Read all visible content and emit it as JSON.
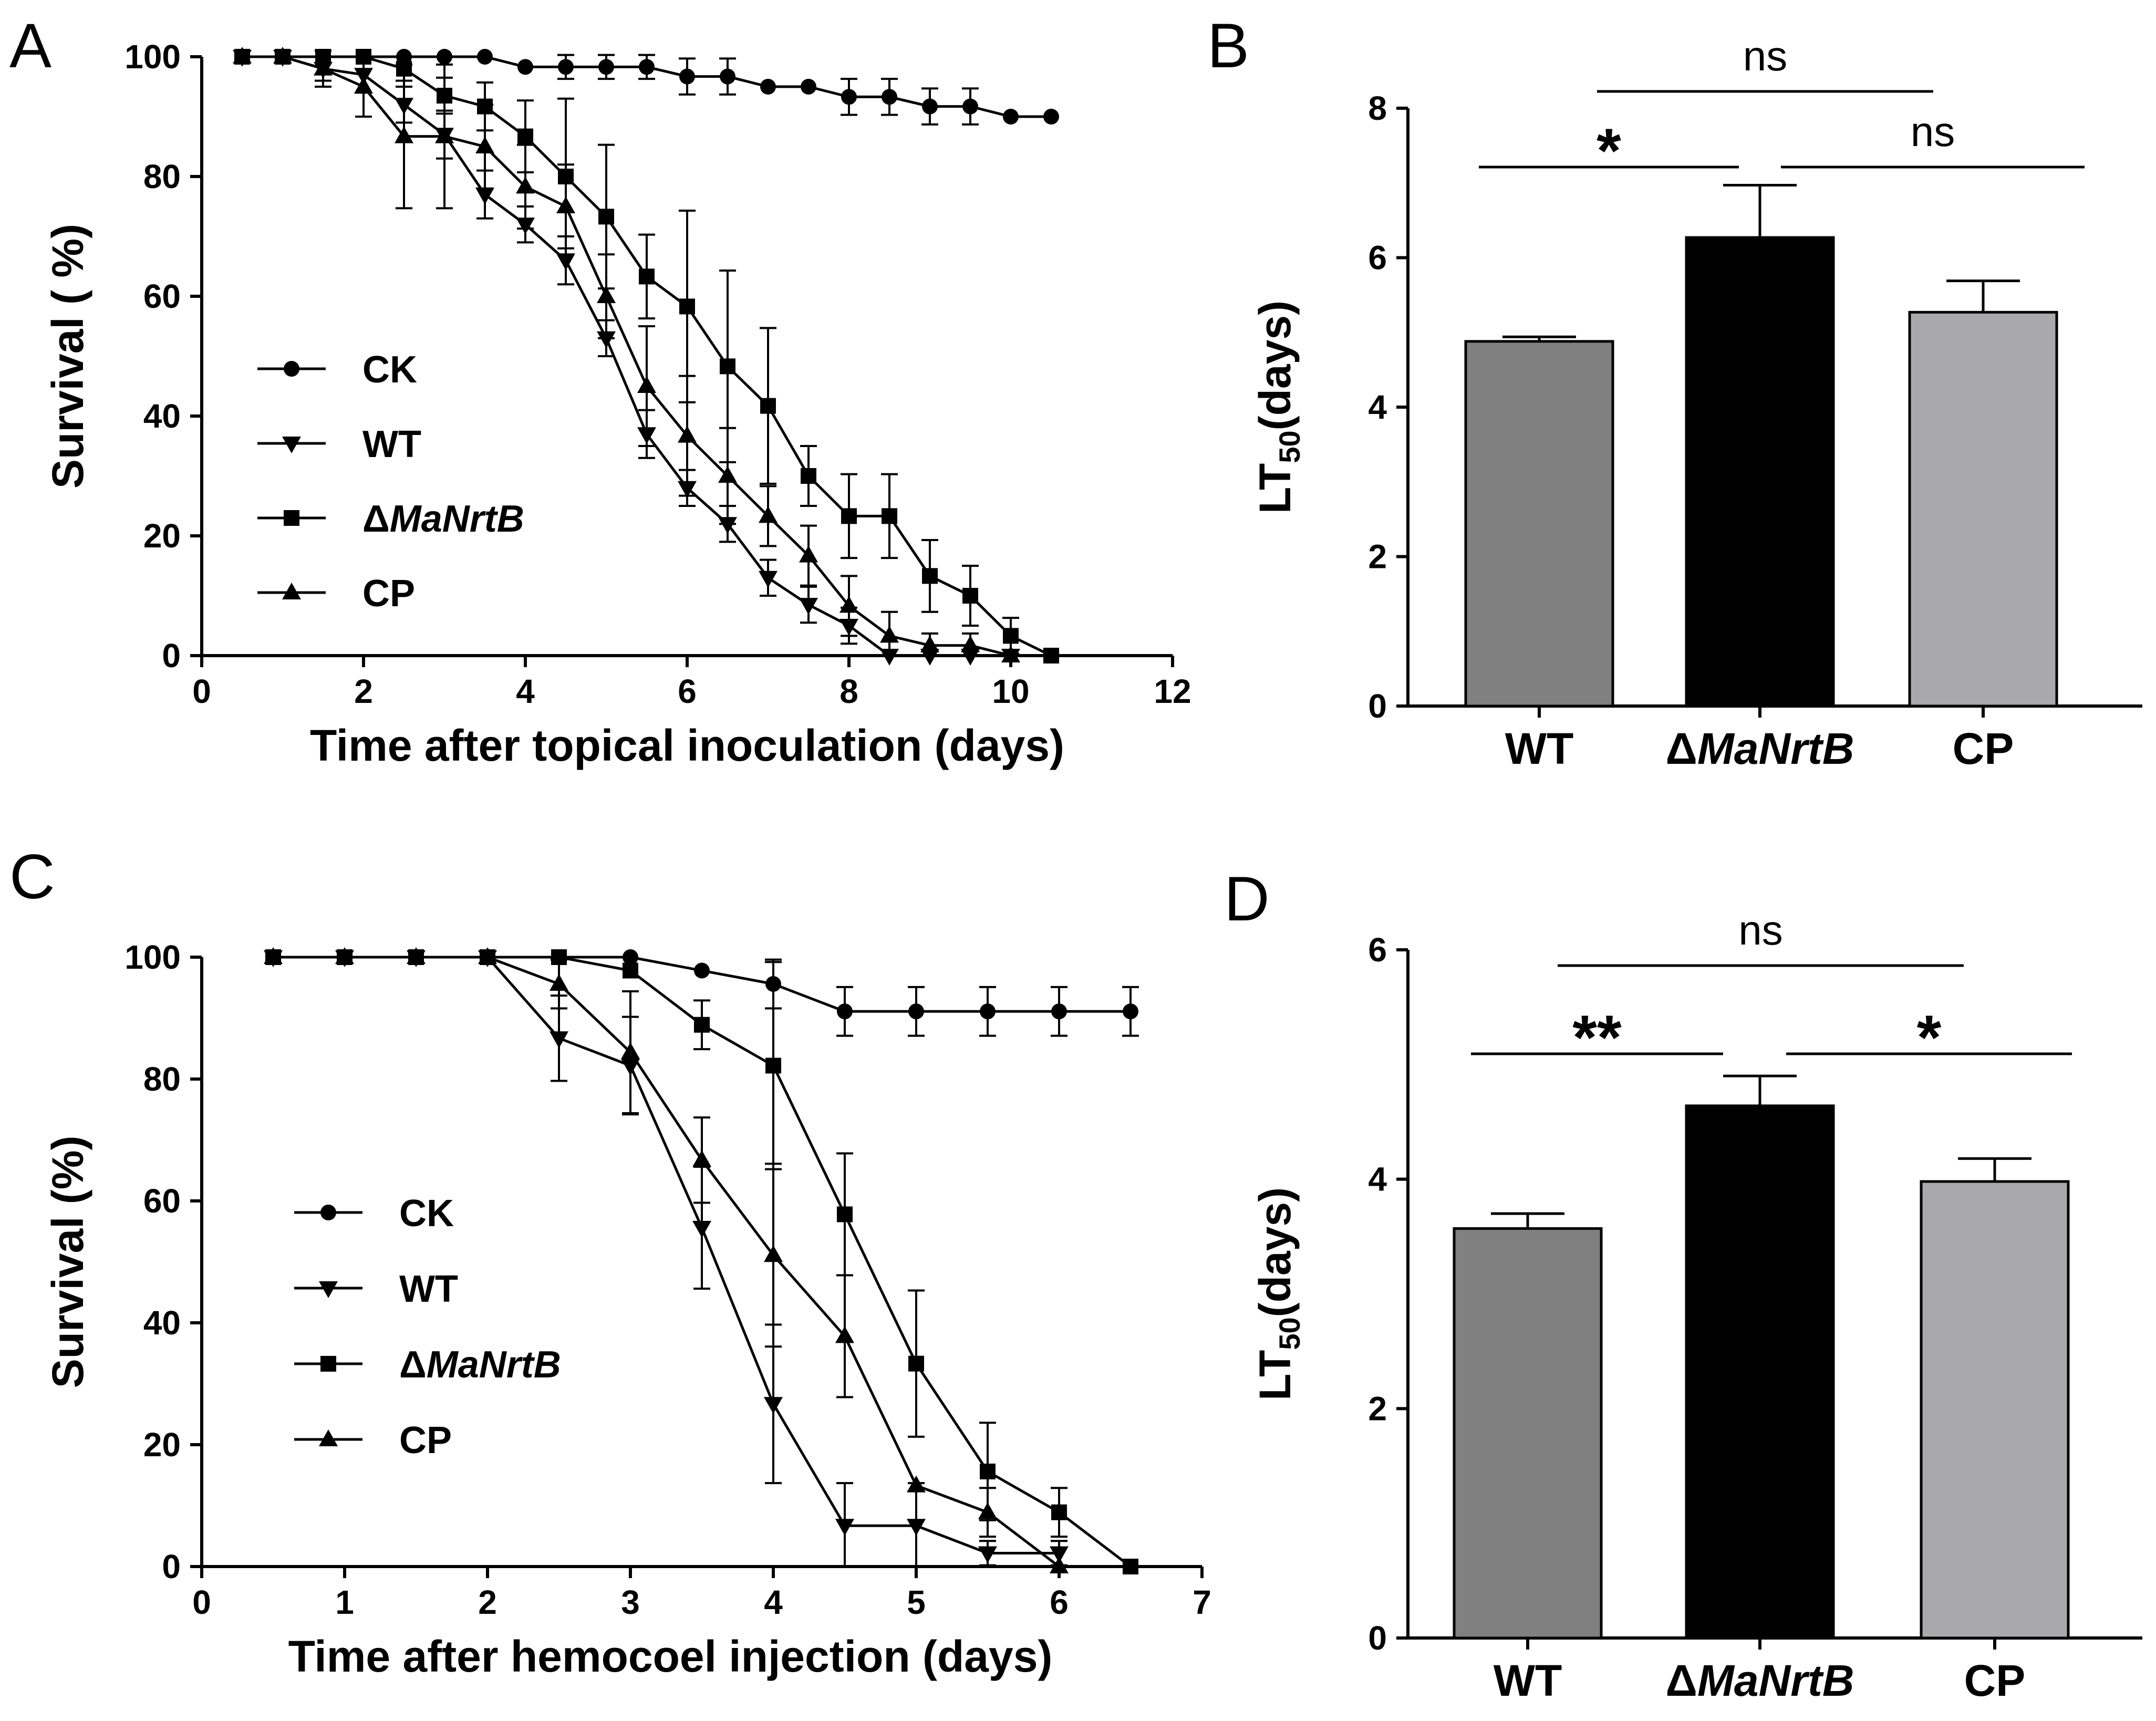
{
  "chart_data": [
    {
      "panel": "A",
      "type": "line",
      "xlabel": "Time after topical inoculation (days)",
      "ylabel": "Survival ( %)",
      "xlim": [
        0,
        12
      ],
      "ylim": [
        0,
        100
      ],
      "xticks": [
        0,
        2,
        4,
        6,
        8,
        10,
        12
      ],
      "yticks": [
        0,
        20,
        40,
        60,
        80,
        100
      ],
      "series": [
        {
          "name": "CK",
          "marker": "circle",
          "x": [
            0.5,
            1,
            1.5,
            2,
            2.5,
            3,
            3.5,
            4,
            4.5,
            5,
            5.5,
            6,
            6.5,
            7,
            7.5,
            8,
            8.5,
            9,
            9.5,
            10,
            10.5
          ],
          "y": [
            100,
            100,
            100,
            100,
            100,
            100,
            100,
            98.3,
            98.3,
            98.3,
            98.3,
            96.7,
            96.7,
            95,
            95,
            93.3,
            93.3,
            91.7,
            91.7,
            90,
            90
          ],
          "err": [
            0,
            0,
            0,
            0,
            0,
            0,
            0,
            0,
            2,
            2,
            2,
            3,
            3,
            0,
            0,
            3,
            3,
            3,
            3,
            0,
            0
          ]
        },
        {
          "name": "WT",
          "marker": "triangle-down",
          "x": [
            0.5,
            1,
            1.5,
            2,
            2.5,
            3,
            3.5,
            4,
            4.5,
            5,
            5.5,
            6,
            6.5,
            7,
            7.5,
            8,
            8.5,
            9,
            9.5,
            10
          ],
          "y": [
            100,
            100,
            98,
            97,
            92,
            87,
            77,
            72,
            66,
            53,
            37,
            28,
            22,
            13,
            8.5,
            5,
            0,
            0,
            0,
            0
          ],
          "err": [
            0,
            0,
            2,
            3,
            3,
            4,
            4,
            3,
            4,
            3,
            4,
            3,
            3,
            3,
            3,
            3,
            0,
            0,
            0,
            0
          ]
        },
        {
          "name": "ΔMaNrtB",
          "marker": "square",
          "x": [
            0.5,
            1,
            1.5,
            2,
            2.5,
            3,
            3.5,
            4,
            4.5,
            5,
            5.5,
            6,
            6.5,
            7,
            7.5,
            8,
            8.5,
            9,
            9.5,
            10,
            10.5
          ],
          "y": [
            100,
            100,
            100,
            100,
            98,
            93.5,
            91.7,
            86.7,
            80,
            73.3,
            63.3,
            58.3,
            48.3,
            41.7,
            30,
            23.3,
            23.3,
            13.3,
            10,
            3.3,
            0
          ],
          "err": [
            0,
            0,
            0,
            0,
            2,
            3,
            4,
            6,
            13,
            12,
            7,
            16,
            16,
            13,
            5,
            7,
            7,
            6,
            5,
            3,
            0
          ]
        },
        {
          "name": "CP",
          "marker": "triangle-up",
          "x": [
            0.5,
            1,
            1.5,
            2,
            2.5,
            3,
            3.5,
            4,
            4.5,
            5,
            5.5,
            6,
            6.5,
            7,
            7.5,
            8,
            8.5,
            9,
            9.5,
            10
          ],
          "y": [
            100,
            100,
            98,
            95,
            86.7,
            86.7,
            85,
            78.3,
            75,
            60,
            45,
            36.7,
            30,
            23.3,
            16.7,
            8.3,
            3.3,
            1.7,
            1.7,
            0
          ],
          "err": [
            0,
            0,
            3,
            5,
            12,
            12,
            7,
            7,
            7,
            7,
            10,
            10,
            8,
            5,
            5,
            5,
            4,
            2,
            2,
            0
          ]
        }
      ],
      "legend": [
        "CK",
        "WT",
        "ΔMaNrtB",
        "CP"
      ]
    },
    {
      "panel": "B",
      "type": "bar",
      "ylabel_main": "LT",
      "ylabel_sub": "50",
      "ylabel_tail": "(days)",
      "categories": [
        "WT",
        "ΔMaNrtB",
        "CP"
      ],
      "values": [
        4.88,
        6.27,
        5.27
      ],
      "errors": [
        0.06,
        0.7,
        0.42
      ],
      "colors": [
        "#808080",
        "#000000",
        "#a9a9ab"
      ],
      "ylim": [
        0,
        8
      ],
      "yticks": [
        0,
        2,
        4,
        6,
        8
      ],
      "comparisons": [
        {
          "pair": [
            "WT",
            "ΔMaNrtB"
          ],
          "label": "*",
          "level": 1
        },
        {
          "pair": [
            "ΔMaNrtB",
            "CP"
          ],
          "label": "ns",
          "level": 1
        },
        {
          "pair": [
            "WT",
            "CP"
          ],
          "label": "ns",
          "level": 2
        }
      ]
    },
    {
      "panel": "C",
      "type": "line",
      "xlabel": "Time after hemocoel injection (days)",
      "ylabel": "Survival (%)",
      "xlim": [
        0,
        7
      ],
      "ylim": [
        0,
        100
      ],
      "xticks": [
        0,
        1,
        2,
        3,
        4,
        5,
        6,
        7
      ],
      "yticks": [
        0,
        20,
        40,
        60,
        80,
        100
      ],
      "series": [
        {
          "name": "CK",
          "marker": "circle",
          "x": [
            0.5,
            1,
            1.5,
            2,
            2.5,
            3,
            3.5,
            4,
            4.5,
            5,
            5.5,
            6,
            6.5
          ],
          "y": [
            100,
            100,
            100,
            100,
            100,
            100,
            97.8,
            95.6,
            91.1,
            91.1,
            91.1,
            91.1,
            91.1
          ],
          "err": [
            0,
            0,
            0,
            0,
            0,
            0,
            0,
            4,
            4,
            4,
            4,
            4,
            4
          ]
        },
        {
          "name": "WT",
          "marker": "triangle-down",
          "x": [
            0.5,
            1,
            1.5,
            2,
            2.5,
            3,
            3.5,
            4,
            4.5,
            5,
            5.5,
            6
          ],
          "y": [
            100,
            100,
            100,
            100,
            86.7,
            82.2,
            55.6,
            26.7,
            6.7,
            6.7,
            2.2,
            2.2
          ],
          "err": [
            0,
            0,
            0,
            0,
            7,
            8,
            10,
            13,
            7,
            7,
            2,
            2
          ]
        },
        {
          "name": "ΔMaNrtB",
          "marker": "square",
          "x": [
            0.5,
            1,
            1.5,
            2,
            2.5,
            3,
            3.5,
            4,
            4.5,
            5,
            5.5,
            6,
            6.5
          ],
          "y": [
            100,
            100,
            100,
            100,
            100,
            97.8,
            88.9,
            82.2,
            57.8,
            33.3,
            15.6,
            8.9,
            0
          ],
          "err": [
            0,
            0,
            0,
            0,
            0,
            0,
            4,
            17,
            10,
            12,
            8,
            4,
            0
          ]
        },
        {
          "name": "CP",
          "marker": "triangle-up",
          "x": [
            0.5,
            1,
            1.5,
            2,
            2.5,
            3,
            3.5,
            4,
            4.5,
            5,
            5.5,
            6
          ],
          "y": [
            100,
            100,
            100,
            100,
            95.6,
            84.4,
            66.7,
            51.1,
            37.8,
            13.3,
            8.9,
            0
          ],
          "err": [
            0,
            0,
            0,
            0,
            4,
            10,
            7,
            15,
            10,
            0,
            4,
            0
          ]
        }
      ],
      "legend": [
        "CK",
        "WT",
        "ΔMaNrtB",
        "CP"
      ]
    },
    {
      "panel": "D",
      "type": "bar",
      "ylabel_main": "LT",
      "ylabel_sub": "50",
      "ylabel_tail": "(days)",
      "categories": [
        "WT",
        "ΔMaNrtB",
        "CP"
      ],
      "values": [
        3.57,
        4.64,
        3.98
      ],
      "errors": [
        0.13,
        0.26,
        0.2
      ],
      "colors": [
        "#808080",
        "#000000",
        "#a9a9ab"
      ],
      "ylim": [
        0,
        6
      ],
      "yticks": [
        0,
        2,
        4,
        6
      ],
      "comparisons": [
        {
          "pair": [
            "WT",
            "ΔMaNrtB"
          ],
          "label": "**",
          "level": 1
        },
        {
          "pair": [
            "ΔMaNrtB",
            "CP"
          ],
          "label": "*",
          "level": 1
        },
        {
          "pair": [
            "WT",
            "CP"
          ],
          "label": "ns",
          "level": 2
        }
      ]
    }
  ]
}
